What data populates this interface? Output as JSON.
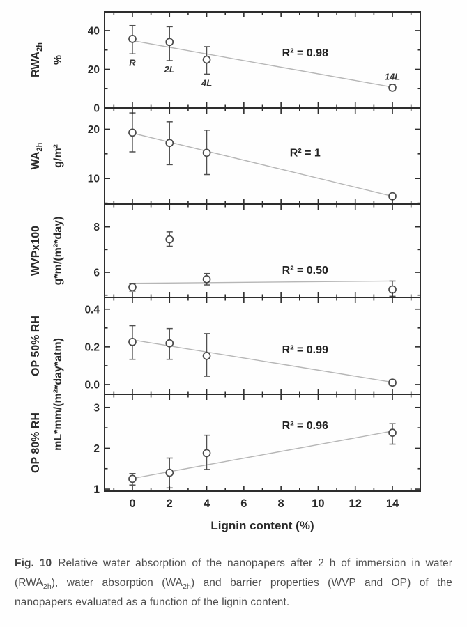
{
  "figure": {
    "xlabel": "Lignin content (%)",
    "x_axis": {
      "lim": [
        -1.5,
        15.5
      ],
      "majors": [
        0,
        2,
        4,
        6,
        8,
        10,
        12,
        14
      ],
      "minors": [
        -1,
        1,
        3,
        5,
        7,
        9,
        11,
        13,
        15
      ],
      "tick_labels": [
        "0",
        "2",
        "4",
        "6",
        "8",
        "10",
        "12",
        "14"
      ]
    },
    "shared_unit": {
      "parts": [
        {
          "t": "mL*mm/(m²*day*atm)"
        }
      ],
      "between_panels": [
        3,
        4
      ]
    },
    "colors": {
      "axis": "#2d2d2d",
      "tick_text": "#2a2a2a",
      "marker_stroke": "#4a4a4a",
      "marker_fill": "#ffffff",
      "error_bar": "#4f4f4f",
      "fit_line": "#b6b6b6",
      "annotation_text": "#232323",
      "tag_text": "#333333"
    }
  },
  "chart_data": [
    {
      "type": "scatter",
      "panel": "rwa2h",
      "title": "Relative water absorption after 2 h",
      "ylabel_parts": [
        {
          "t": "RWA"
        },
        {
          "t": "2h",
          "sub": true
        }
      ],
      "yunit_parts": [
        {
          "t": "%"
        }
      ],
      "ylim": [
        0,
        49.7
      ],
      "ymajors": [
        0,
        20,
        40
      ],
      "ytick_labels": [
        "0",
        "20",
        "40"
      ],
      "yminors": [
        10,
        30
      ],
      "x": [
        0,
        2,
        4,
        14
      ],
      "y": [
        35.7,
        34.1,
        25.0,
        10.5
      ],
      "err_lo": [
        28.0,
        24.5,
        17.5,
        9.0
      ],
      "err_hi": [
        42.6,
        42.0,
        31.7,
        12.0
      ],
      "point_tags": [
        {
          "text": "R",
          "pos": "below"
        },
        {
          "text": "2L",
          "pos": "below"
        },
        {
          "text": "4L",
          "pos": "below"
        },
        {
          "text": "14L",
          "pos": "above"
        }
      ],
      "fit_line": {
        "x": [
          0,
          14
        ],
        "y": [
          34.8,
          10.8
        ]
      },
      "annotation": "R² = 0.98",
      "annotation_xy": [
        9.3,
        28.5
      ]
    },
    {
      "type": "scatter",
      "panel": "wa2h",
      "title": "Water absorption after 2 h",
      "ylabel_parts": [
        {
          "t": "WA"
        },
        {
          "t": "2h",
          "sub": true
        }
      ],
      "yunit_parts": [
        {
          "t": "g/m²"
        }
      ],
      "ylim": [
        4.8,
        24.3
      ],
      "ymajors": [
        10,
        20
      ],
      "ytick_labels": [
        "10",
        "20"
      ],
      "yminors": [
        5,
        15
      ],
      "x": [
        0,
        2,
        4,
        14
      ],
      "y": [
        19.3,
        17.2,
        15.2,
        6.4
      ],
      "err_lo": [
        15.4,
        12.8,
        10.8,
        5.9
      ],
      "err_hi": [
        23.3,
        21.5,
        19.8,
        6.9
      ],
      "point_tags": [
        null,
        null,
        null,
        null
      ],
      "fit_line": {
        "x": [
          0,
          14
        ],
        "y": [
          19.2,
          6.4
        ]
      },
      "annotation": "R² = 1",
      "annotation_xy": [
        9.3,
        15.2
      ]
    },
    {
      "type": "scatter",
      "panel": "wvp",
      "title": "Water vapour permeability",
      "ylabel_parts": [
        {
          "t": "WVPx100"
        }
      ],
      "yunit_parts": [
        {
          "t": "g*m/(m²*day)"
        }
      ],
      "ylim": [
        4.9,
        9.0
      ],
      "ymajors": [
        6,
        8
      ],
      "ytick_labels": [
        "6",
        "8"
      ],
      "yminors": [
        5,
        7,
        9
      ],
      "x": [
        0,
        2,
        4,
        14
      ],
      "y": [
        5.35,
        7.45,
        5.7,
        5.25
      ],
      "err_lo": [
        5.18,
        7.15,
        5.45,
        4.95
      ],
      "err_hi": [
        5.52,
        7.78,
        5.95,
        5.62
      ],
      "point_tags": [
        null,
        null,
        null,
        null
      ],
      "fit_line": {
        "x": [
          0,
          14
        ],
        "y": [
          5.52,
          5.62
        ]
      },
      "annotation": "R² = 0.50",
      "annotation_xy": [
        9.3,
        6.1
      ]
    },
    {
      "type": "scatter",
      "panel": "op50rh",
      "title": "Oxygen permeability at 50% RH",
      "ylabel_parts": [
        {
          "t": "OP 50% RH"
        }
      ],
      "yunit_parts": null,
      "ylim": [
        -0.052,
        0.462
      ],
      "ymajors": [
        0,
        0.2,
        0.4
      ],
      "ytick_labels": [
        "0.0",
        "0.2",
        "0.4"
      ],
      "yminors": [
        0.1,
        0.3
      ],
      "x": [
        0,
        2,
        4,
        14
      ],
      "y": [
        0.226,
        0.219,
        0.152,
        0.01
      ],
      "err_lo": [
        0.134,
        0.134,
        0.044,
        -0.005
      ],
      "err_hi": [
        0.312,
        0.297,
        0.27,
        0.025
      ],
      "point_tags": [
        null,
        null,
        null,
        null
      ],
      "fit_line": {
        "x": [
          0,
          14
        ],
        "y": [
          0.237,
          0.012
        ]
      },
      "annotation": "R² = 0.99",
      "annotation_xy": [
        9.3,
        0.185
      ]
    },
    {
      "type": "scatter",
      "panel": "op80rh",
      "title": "Oxygen permeability at 80% RH",
      "ylabel_parts": [
        {
          "t": "OP 80% RH"
        }
      ],
      "yunit_parts": null,
      "ylim": [
        0.95,
        3.32
      ],
      "ymajors": [
        1,
        2,
        3
      ],
      "ytick_labels": [
        "1",
        "2",
        "3"
      ],
      "yminors": [
        1.5,
        2.5
      ],
      "x": [
        0,
        2,
        4,
        14
      ],
      "y": [
        1.25,
        1.4,
        1.88,
        2.38
      ],
      "err_lo": [
        1.1,
        1.03,
        1.48,
        2.1
      ],
      "err_hi": [
        1.38,
        1.76,
        2.32,
        2.6
      ],
      "point_tags": [
        null,
        null,
        null,
        null
      ],
      "fit_line": {
        "x": [
          0,
          14
        ],
        "y": [
          1.26,
          2.42
        ]
      },
      "annotation": "R² = 0.96",
      "annotation_xy": [
        9.3,
        2.55
      ]
    }
  ],
  "caption": {
    "segments": [
      {
        "t": "Fig. 10",
        "b": true
      },
      {
        "t": "Relative water absorption of the nanopapers after 2 h of immersion in water (RWA"
      },
      {
        "t": "2h",
        "sub": true
      },
      {
        "t": "), water absorption (WA"
      },
      {
        "t": "2h",
        "sub": true
      },
      {
        "t": ") and barrier properties (WVP and OP) of the nanopapers evaluated as a function of the lignin content."
      }
    ]
  }
}
